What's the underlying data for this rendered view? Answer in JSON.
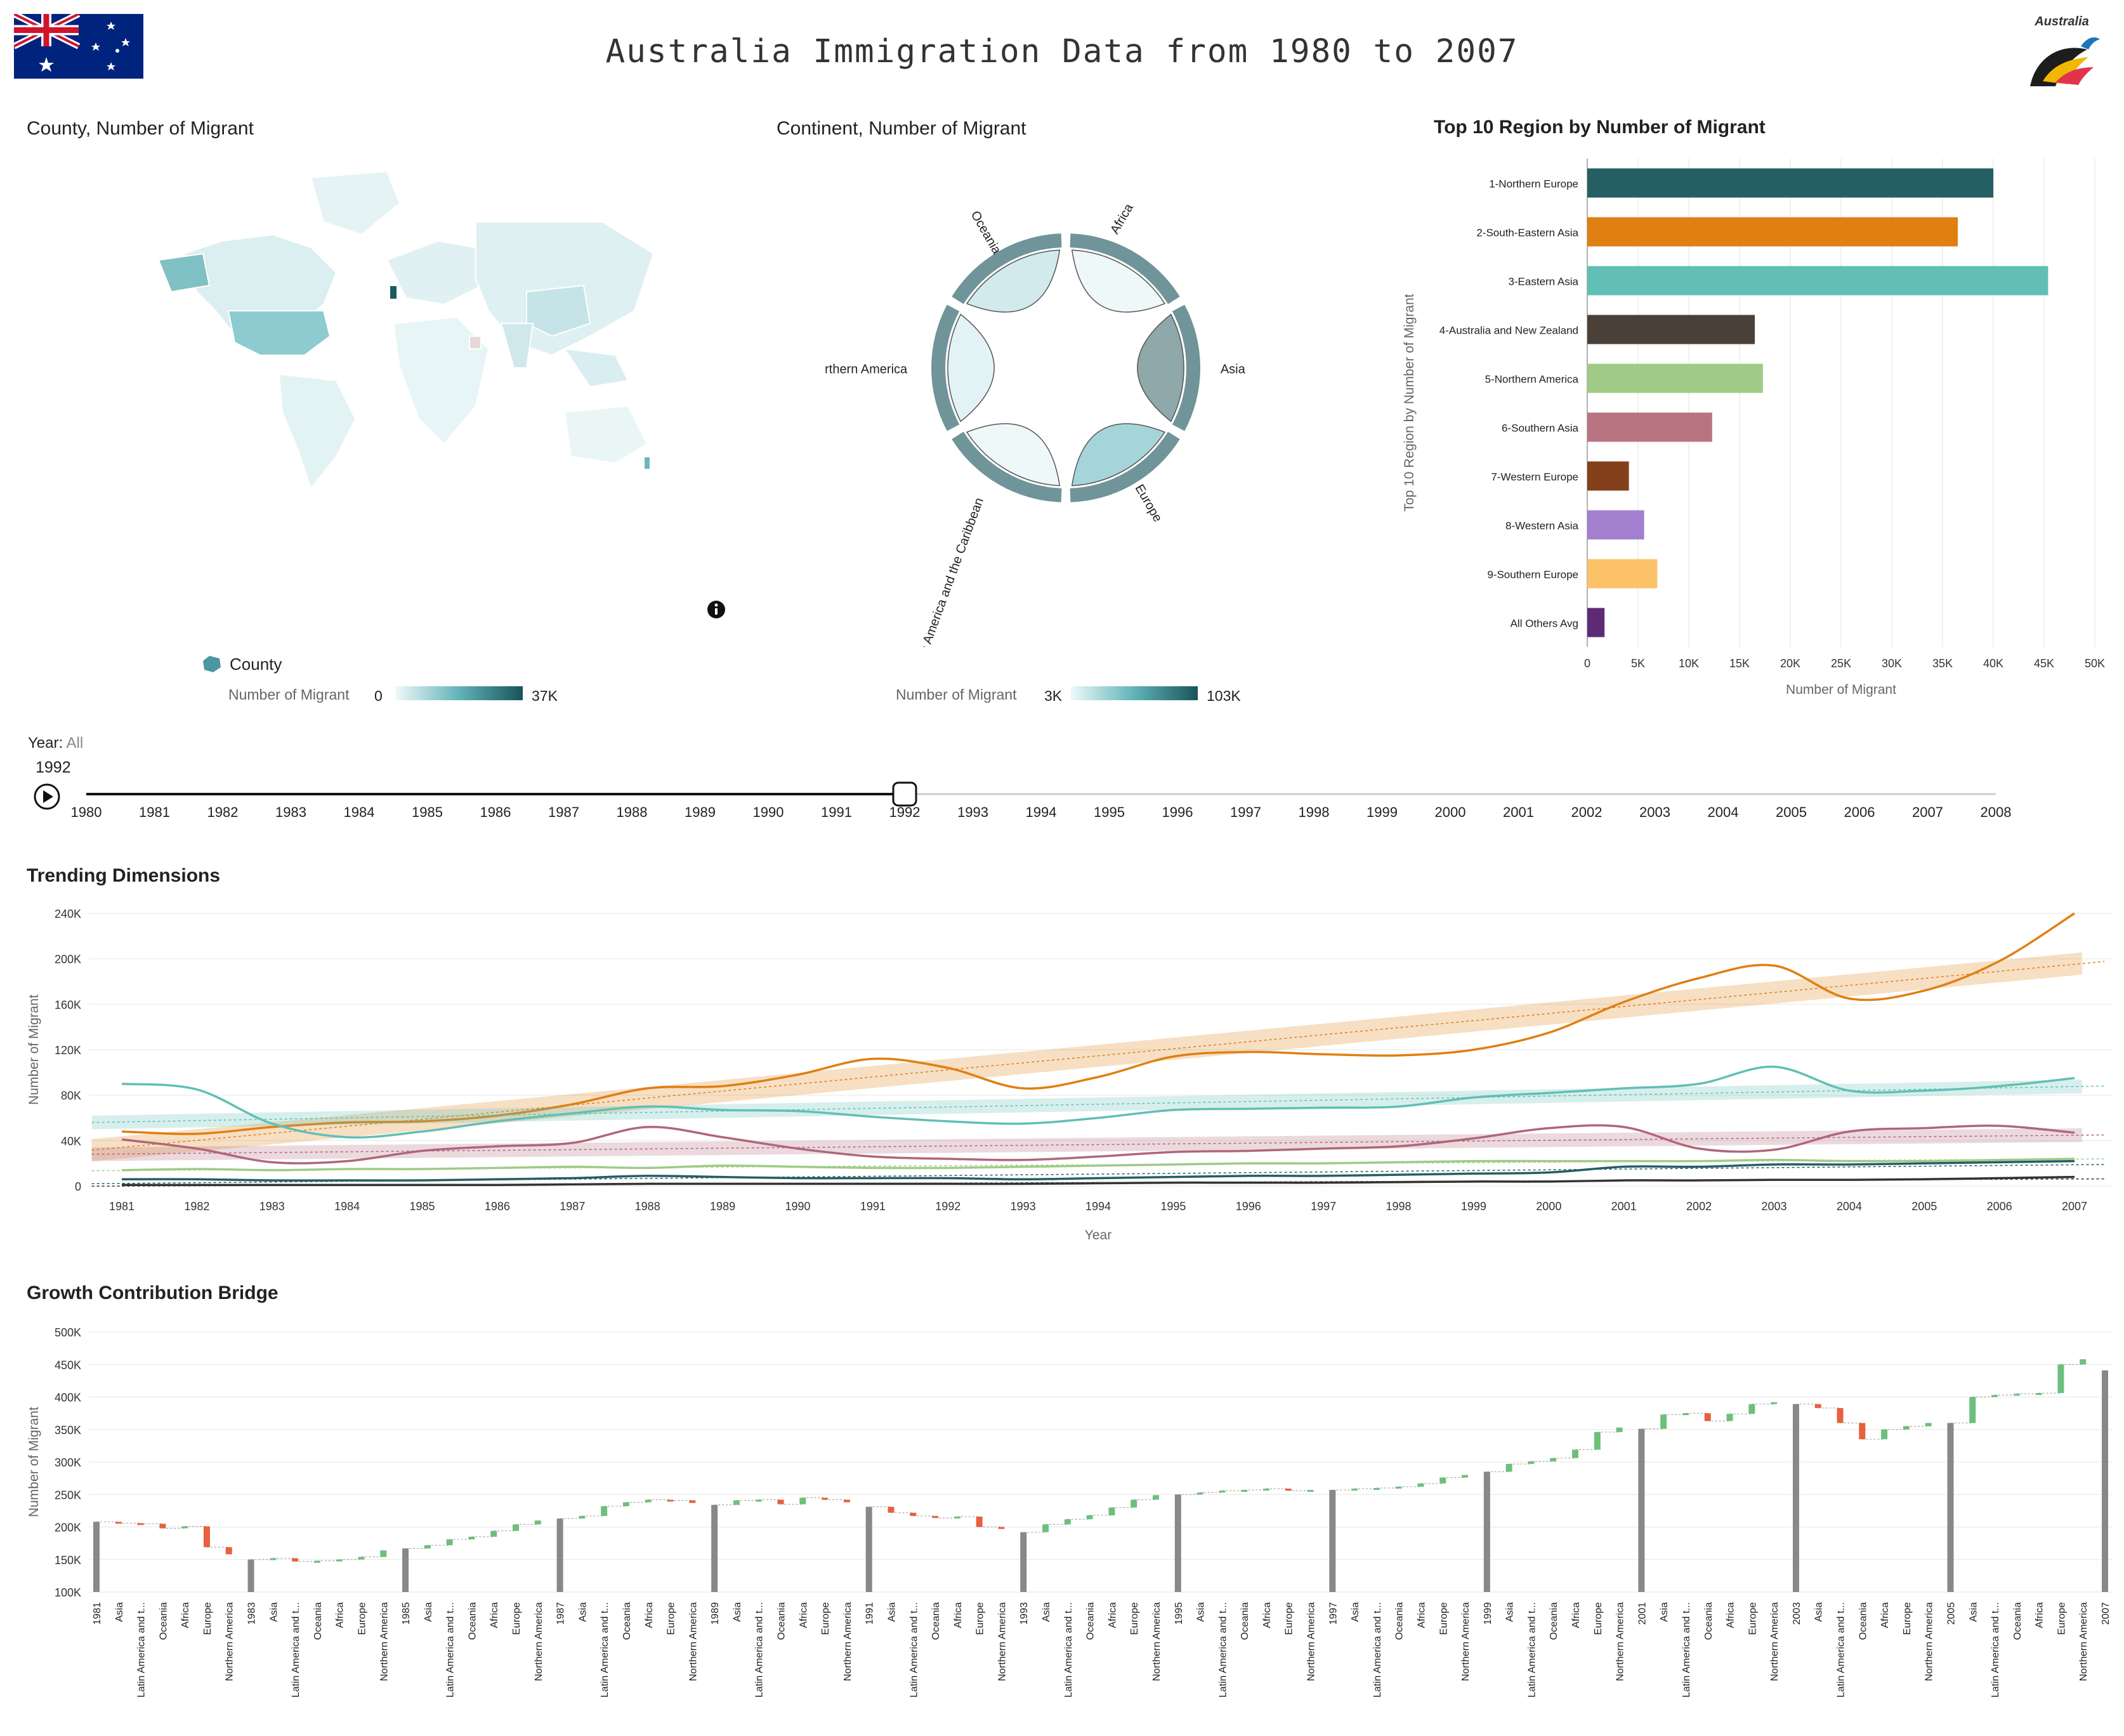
{
  "header": {
    "title": "Australia Immigration Data from 1980 to 2007",
    "logo_text": "Australia"
  },
  "map_panel": {
    "title": "County, Number of Migrant",
    "legend_shape_label": "County",
    "legend_label": "Number of Migrant",
    "legend_min": "0",
    "legend_max": "37K"
  },
  "continent_panel": {
    "title": "Continent, Number of Migrant",
    "legend_label": "Number of Migrant",
    "legend_min": "3K",
    "legend_max": "103K",
    "segments": [
      {
        "name": "Africa",
        "color": "#eef8f9"
      },
      {
        "name": "Asia",
        "color": "#8fa8aa"
      },
      {
        "name": "Europe",
        "color": "#a6d5d9"
      },
      {
        "name": "Latin America and the Caribbean",
        "color": "#eef8f9"
      },
      {
        "name": "Northern America",
        "color": "#e3f3f5"
      },
      {
        "name": "Oceania",
        "color": "#d2eaed"
      }
    ]
  },
  "year_control": {
    "label": "Year:",
    "value": "All",
    "current": "1992",
    "years": [
      "1980",
      "1981",
      "1982",
      "1983",
      "1984",
      "1985",
      "1986",
      "1987",
      "1988",
      "1989",
      "1990",
      "1991",
      "1992",
      "1993",
      "1994",
      "1995",
      "1996",
      "1997",
      "1998",
      "1999",
      "2000",
      "2001",
      "2002",
      "2003",
      "2004",
      "2005",
      "2006",
      "2007",
      "2008"
    ]
  },
  "trending_panel": {
    "title": "Trending Dimensions"
  },
  "bridge_panel": {
    "title": "Growth Contribution Bridge"
  },
  "chart_data": [
    {
      "type": "bar",
      "title": "Top 10 Region by Number of Migrant",
      "orientation": "horizontal",
      "categories": [
        "1-Northern Europe",
        "2-South-Eastern Asia",
        "3-Eastern Asia",
        "4-Australia and New Zealand",
        "5-Northern America",
        "6-Southern Asia",
        "7-Western Europe",
        "8-Western Asia",
        "9-Southern Europe",
        "All Others Avg"
      ],
      "values": [
        40000,
        36500,
        45400,
        16500,
        17300,
        12300,
        4100,
        5600,
        6900,
        1700
      ],
      "colors": [
        "#255e63",
        "#e07f12",
        "#61bfb5",
        "#4b4038",
        "#9fcb87",
        "#b97482",
        "#843f1b",
        "#a280cf",
        "#fcc26a",
        "#5d2b75"
      ],
      "xlabel": "Number of Migrant",
      "ylabel": "Top 10 Region by Number of Migrant",
      "xlim": [
        0,
        50000
      ],
      "xticks": [
        0,
        5000,
        10000,
        15000,
        20000,
        25000,
        30000,
        35000,
        40000,
        45000,
        50000
      ],
      "xtick_labels": [
        "0",
        "5K",
        "10K",
        "15K",
        "20K",
        "25K",
        "30K",
        "35K",
        "40K",
        "45K",
        "50K"
      ]
    },
    {
      "type": "line",
      "title": "Trending Dimensions",
      "xlabel": "Year",
      "ylabel": "Number of Migrant",
      "x": [
        "1981",
        "1982",
        "1983",
        "1984",
        "1985",
        "1986",
        "1987",
        "1988",
        "1989",
        "1990",
        "1991",
        "1992",
        "1993",
        "1994",
        "1995",
        "1996",
        "1997",
        "1998",
        "1999",
        "2000",
        "2001",
        "2002",
        "2003",
        "2004",
        "2005",
        "2006",
        "2007"
      ],
      "ylim": [
        0,
        240000
      ],
      "yticks": [
        0,
        40000,
        80000,
        120000,
        160000,
        200000,
        240000
      ],
      "ytick_labels": [
        "0",
        "40K",
        "80K",
        "120K",
        "160K",
        "200K",
        "240K"
      ],
      "series": [
        {
          "color": "#e07f12",
          "values": [
            48000,
            46000,
            52000,
            56000,
            57000,
            62000,
            72000,
            86000,
            88000,
            98000,
            112000,
            104000,
            86000,
            96000,
            114000,
            118000,
            116000,
            115000,
            120000,
            135000,
            162000,
            183000,
            194000,
            165000,
            172000,
            198000,
            240000
          ]
        },
        {
          "color": "#61bfb5",
          "values": [
            90000,
            85000,
            55000,
            43000,
            48000,
            57000,
            64000,
            70000,
            67000,
            66000,
            61000,
            57000,
            55000,
            60000,
            67000,
            68000,
            69000,
            70000,
            78000,
            82000,
            86000,
            90000,
            105000,
            84000,
            84000,
            88000,
            95000
          ]
        },
        {
          "color": "#b0667a",
          "values": [
            41000,
            33000,
            21000,
            22000,
            31000,
            35000,
            38000,
            52000,
            43000,
            33000,
            26000,
            24000,
            23000,
            26000,
            30000,
            31000,
            33000,
            35000,
            42000,
            51000,
            52000,
            33000,
            32000,
            48000,
            51000,
            53000,
            47000
          ]
        },
        {
          "color": "#9fcb87",
          "values": [
            14000,
            15000,
            14000,
            15000,
            15000,
            16000,
            17000,
            16000,
            18000,
            17000,
            16000,
            16000,
            17000,
            18000,
            19000,
            20000,
            20000,
            21000,
            22000,
            22000,
            22000,
            22000,
            23000,
            22000,
            22000,
            23000,
            24000
          ]
        },
        {
          "color": "#255e63",
          "values": [
            6000,
            6000,
            5000,
            5000,
            5000,
            6000,
            7000,
            9000,
            8000,
            7000,
            7000,
            7000,
            6000,
            7000,
            8000,
            9000,
            9000,
            10000,
            11000,
            12000,
            17000,
            17000,
            19000,
            19000,
            20000,
            21000,
            22000
          ]
        },
        {
          "color": "#333333",
          "values": [
            1000,
            1000,
            1000,
            1000,
            1000,
            1000,
            1500,
            2000,
            2000,
            2000,
            2000,
            2000,
            2000,
            2500,
            3000,
            3000,
            3000,
            3500,
            4000,
            4000,
            5000,
            5000,
            5500,
            5500,
            6000,
            7000,
            8000
          ]
        }
      ]
    },
    {
      "type": "bar",
      "subtype": "waterfall",
      "title": "Growth Contribution Bridge",
      "ylabel": "Number of Migrant",
      "ylim": [
        100000,
        500000
      ],
      "yticks": [
        100000,
        150000,
        200000,
        250000,
        300000,
        350000,
        400000,
        450000,
        500000
      ],
      "ytick_labels": [
        "100K",
        "150K",
        "200K",
        "250K",
        "300K",
        "350K",
        "400K",
        "450K",
        "500K"
      ],
      "deltas_order": [
        "Asia",
        "Latin America and t...",
        "Oceania",
        "Africa",
        "Europe",
        "Northern America"
      ],
      "years": [
        {
          "year": "1981",
          "total": 208000,
          "deltas": [
            -2000,
            -1000,
            -7000,
            3000,
            -32000,
            -11000
          ]
        },
        {
          "year": "1983",
          "total": 150000,
          "deltas": [
            2000,
            -5000,
            1000,
            2000,
            4000,
            10000
          ]
        },
        {
          "year": "1985",
          "total": 167000,
          "deltas": [
            5000,
            9000,
            4000,
            9000,
            10000,
            6000
          ]
        },
        {
          "year": "1987",
          "total": 213000,
          "deltas": [
            4000,
            15000,
            6000,
            4000,
            -1000,
            -4000
          ]
        },
        {
          "year": "1989",
          "total": 234000,
          "deltas": [
            7000,
            1000,
            -7000,
            10000,
            -3000,
            -4000
          ]
        },
        {
          "year": "1991",
          "total": 231000,
          "deltas": [
            -9000,
            -5000,
            -3000,
            2000,
            -16000,
            -3000
          ]
        },
        {
          "year": "1993",
          "total": 192000,
          "deltas": [
            12000,
            8000,
            6000,
            12000,
            12000,
            7000
          ]
        },
        {
          "year": "1995",
          "total": 250000,
          "deltas": [
            3000,
            3000,
            1000,
            2000,
            -3000,
            1000
          ]
        },
        {
          "year": "1997",
          "total": 257000,
          "deltas": [
            2000,
            1000,
            2000,
            5000,
            9000,
            4000
          ]
        },
        {
          "year": "1999",
          "total": 285000,
          "deltas": [
            12000,
            4000,
            5000,
            13000,
            27000,
            7000
          ]
        },
        {
          "year": "2001",
          "total": 351000,
          "deltas": [
            22000,
            2000,
            -12000,
            11000,
            15000,
            3000
          ]
        },
        {
          "year": "2003",
          "total": 389000,
          "deltas": [
            -6000,
            -23000,
            -25000,
            15000,
            5000,
            5000
          ]
        },
        {
          "year": "2005",
          "total": 360000,
          "deltas": [
            40000,
            3000,
            2000,
            1000,
            44000,
            8000
          ]
        },
        {
          "year": "2007",
          "total": 441000,
          "deltas": []
        }
      ]
    }
  ]
}
